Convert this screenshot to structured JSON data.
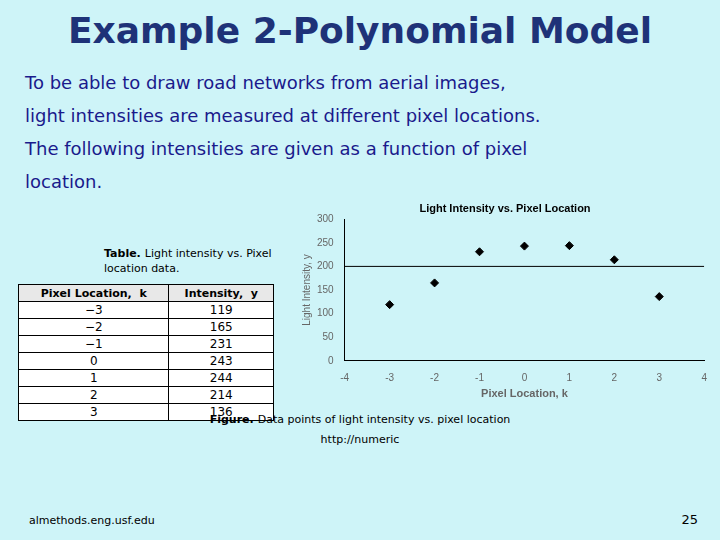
{
  "page": {
    "title": "Example 2-Polynomial Model",
    "title_color": "#1e3278",
    "body_text": [
      "To be able to draw road networks from aerial images,",
      "light intensities are measured at different pixel locations.",
      "The following intensities are given as a function of pixel",
      "location."
    ],
    "body_color": "#1a1a8c",
    "background": "#cef4f8",
    "table_title_bold": "Table.",
    "table_title": [
      "Light intensity vs. Pixel",
      "location data."
    ],
    "table_headers": [
      "Pixel Location,  k",
      "Intensity,  y"
    ],
    "table_rows": [
      [
        "−3",
        "119"
      ],
      [
        "−2",
        "165"
      ],
      [
        "−1",
        "231"
      ],
      [
        "0",
        "243"
      ],
      [
        "1",
        "244"
      ],
      [
        "2",
        "214"
      ],
      [
        "3",
        "136"
      ]
    ],
    "caption_bold": "Figure.",
    "caption": [
      "Data points of light intensity vs. pixel location",
      "http://numeric"
    ],
    "footer_left": "almethods.eng.usf.edu",
    "footer_right": "25"
  },
  "chart_data": {
    "type": "scatter",
    "title": "Light Intensity vs. Pixel Location",
    "x_label": "Pixel Location, k",
    "y_label": "Light Intensity, y",
    "x": [
      -3,
      -2,
      -1,
      0,
      1,
      2,
      3
    ],
    "values": [
      119,
      165,
      231,
      243,
      244,
      214,
      136
    ],
    "color": "#000000",
    "marker": "diamond",
    "hline": {
      "y": 200,
      "color": "#000000"
    },
    "xlim": [
      -4,
      4
    ],
    "xticks": [
      -4,
      -3,
      -2,
      -1,
      0,
      1,
      2,
      3,
      4
    ],
    "ylim": [
      0,
      300
    ],
    "yticks": [
      0,
      50,
      100,
      150,
      200,
      250,
      300
    ],
    "grid": false
  }
}
